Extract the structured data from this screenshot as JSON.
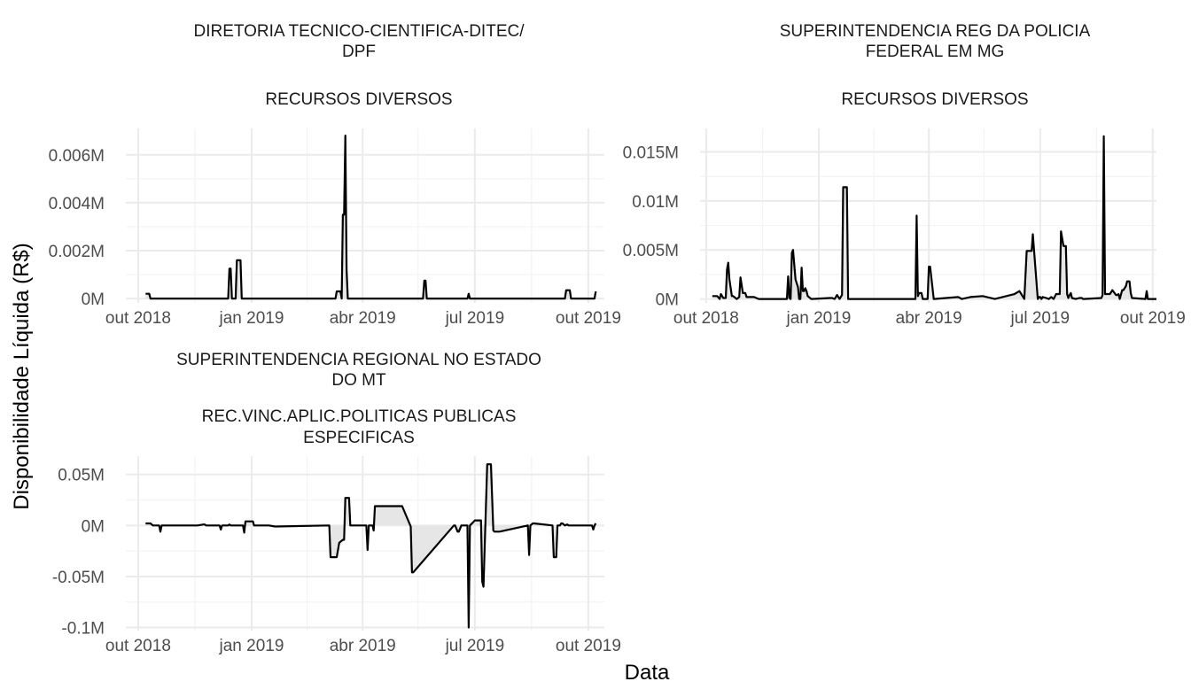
{
  "figure": {
    "xlabel": "Data",
    "ylabel": "Disponibilidade Líquida (R$)"
  },
  "chart_data": [
    {
      "type": "area",
      "title_lines": [
        "DIRETORIA TECNICO-CIENTIFICA-DITEC/",
        "DPF",
        "",
        "RECURSOS DIVERSOS"
      ],
      "xlabel": "Data",
      "ylabel": "Disponibilidade Líquida (R$)",
      "x_ticks": [
        {
          "date": "2018-10-01",
          "label": "out 2018"
        },
        {
          "date": "2019-01-01",
          "label": "jan 2019"
        },
        {
          "date": "2019-04-01",
          "label": "abr 2019"
        },
        {
          "date": "2019-07-01",
          "label": "jul 2019"
        },
        {
          "date": "2019-10-01",
          "label": "out 2019"
        }
      ],
      "y_ticks": [
        {
          "value": 0,
          "label": "0M"
        },
        {
          "value": 0.002,
          "label": "0.002M"
        },
        {
          "value": 0.004,
          "label": "0.004M"
        },
        {
          "value": 0.006,
          "label": "0.006M"
        }
      ],
      "xlim": [
        "2018-09-21",
        "2019-10-14"
      ],
      "ylim": [
        -0.00018,
        0.0071
      ],
      "unit": "M",
      "grid": true,
      "series": [
        {
          "color": "#000000",
          "fill": "#e6e6e6",
          "x": [
            "2018-10-07",
            "2018-10-10",
            "2018-10-11",
            "2018-12-13",
            "2018-12-14",
            "2018-12-15",
            "2018-12-16",
            "2018-12-19",
            "2018-12-20",
            "2018-12-23",
            "2018-12-24",
            "2019-03-10",
            "2019-03-11",
            "2019-03-14",
            "2019-03-15",
            "2019-03-16",
            "2019-03-17",
            "2019-03-18",
            "2019-03-19",
            "2019-03-20",
            "2019-05-20",
            "2019-05-21",
            "2019-05-22",
            "2019-05-23",
            "2019-06-25",
            "2019-06-26",
            "2019-06-27",
            "2019-09-12",
            "2019-09-13",
            "2019-09-16",
            "2019-09-17",
            "2019-10-06",
            "2019-10-07"
          ],
          "y": [
            0.0002,
            0.0002,
            0,
            0,
            0.00125,
            0.00125,
            0,
            0,
            0.0016,
            0.0016,
            0,
            0,
            0.0003,
            0.0003,
            0,
            0.0035,
            0.0035,
            0.0068,
            0.0012,
            0,
            0,
            0.00075,
            0.00075,
            0,
            0,
            0.0002,
            0,
            0,
            0.00035,
            0.00035,
            0,
            0,
            0.0003
          ]
        }
      ]
    },
    {
      "type": "area",
      "title_lines": [
        "SUPERINTENDENCIA REG DA POLICIA",
        "FEDERAL EM MG",
        "",
        "RECURSOS DIVERSOS"
      ],
      "xlabel": "Data",
      "ylabel": "Disponibilidade Líquida (R$)",
      "x_ticks": [
        {
          "date": "2018-10-01",
          "label": "out 2018"
        },
        {
          "date": "2019-01-01",
          "label": "jan 2019"
        },
        {
          "date": "2019-04-01",
          "label": "abr 2019"
        },
        {
          "date": "2019-07-01",
          "label": "jul 2019"
        },
        {
          "date": "2019-10-01",
          "label": "out 2019"
        }
      ],
      "y_ticks": [
        {
          "value": 0,
          "label": "0M"
        },
        {
          "value": 0.005,
          "label": "0.005M"
        },
        {
          "value": 0.01,
          "label": "0.01M"
        },
        {
          "value": 0.015,
          "label": "0.015M"
        }
      ],
      "xlim": [
        "2018-09-26",
        "2019-10-04"
      ],
      "ylim": [
        -0.0004,
        0.0174
      ],
      "unit": "M",
      "grid": true,
      "series": [
        {
          "color": "#000000",
          "fill": "#e6e6e6",
          "x": [
            "2018-10-06",
            "2018-10-10",
            "2018-10-12",
            "2018-10-13",
            "2018-10-15",
            "2018-10-17",
            "2018-10-18",
            "2018-10-19",
            "2018-10-20",
            "2018-10-22",
            "2018-10-23",
            "2018-10-26",
            "2018-10-28",
            "2018-10-29",
            "2018-10-31",
            "2018-11-02",
            "2018-11-03",
            "2018-11-09",
            "2018-11-13",
            "2018-12-05",
            "2018-12-06",
            "2018-12-07",
            "2018-12-08",
            "2018-12-09",
            "2018-12-10",
            "2018-12-11",
            "2018-12-13",
            "2018-12-15",
            "2018-12-16",
            "2018-12-17",
            "2018-12-18",
            "2018-12-19",
            "2018-12-20",
            "2018-12-21",
            "2018-12-22",
            "2018-12-23",
            "2018-12-26",
            "2019-01-10",
            "2019-01-12",
            "2019-01-14",
            "2019-01-16",
            "2019-01-18",
            "2019-01-20",
            "2019-01-21",
            "2019-01-22",
            "2019-01-24",
            "2019-01-25",
            "2019-01-27",
            "2019-03-21",
            "2019-03-22",
            "2019-03-23",
            "2019-03-24",
            "2019-03-26",
            "2019-03-27",
            "2019-03-30",
            "2019-03-31",
            "2019-04-01",
            "2019-04-02",
            "2019-04-05",
            "2019-04-25",
            "2019-04-28",
            "2019-05-05",
            "2019-05-15",
            "2019-05-25",
            "2019-06-10",
            "2019-06-14",
            "2019-06-18",
            "2019-06-20",
            "2019-06-22",
            "2019-06-24",
            "2019-06-25",
            "2019-06-29",
            "2019-06-30",
            "2019-07-01",
            "2019-07-02",
            "2019-07-03",
            "2019-07-06",
            "2019-07-08",
            "2019-07-10",
            "2019-07-12",
            "2019-07-14",
            "2019-07-16",
            "2019-07-17",
            "2019-07-18",
            "2019-07-20",
            "2019-07-22",
            "2019-07-23",
            "2019-07-24",
            "2019-07-25",
            "2019-07-26",
            "2019-07-27",
            "2019-07-30",
            "2019-08-02",
            "2019-08-04",
            "2019-08-05",
            "2019-08-20",
            "2019-08-21",
            "2019-08-22",
            "2019-08-23",
            "2019-08-24",
            "2019-08-26",
            "2019-08-27",
            "2019-08-29",
            "2019-09-01",
            "2019-09-02",
            "2019-09-03",
            "2019-09-04",
            "2019-09-06",
            "2019-09-07",
            "2019-09-09",
            "2019-09-10",
            "2019-09-12",
            "2019-09-13",
            "2019-09-14",
            "2019-09-25",
            "2019-09-26",
            "2019-09-27",
            "2019-10-04"
          ],
          "y": [
            0.0003,
            0.0003,
            0,
            0.0005,
            0.0001,
            0.0001,
            0.003,
            0.0037,
            0.002,
            0.0003,
            0.0003,
            0,
            0.0002,
            0.0022,
            0.0006,
            0.0006,
            0.0002,
            0.0002,
            0,
            0,
            0,
            0.0023,
            0.0001,
            0,
            0.0047,
            0.005,
            0.002,
            0.0012,
            0,
            0,
            0.0032,
            0.0008,
            0.0008,
            0.0011,
            0.0008,
            0.0003,
            0,
            0.0001,
            0.0001,
            0,
            0.0004,
            0,
            0.0004,
            0.0114,
            0.0114,
            0.0114,
            0,
            0,
            0,
            0.0085,
            0.0003,
            0.0006,
            0.0006,
            0,
            0,
            0,
            0.0033,
            0.0033,
            0,
            0.0002,
            0,
            0.0002,
            0.0003,
            0,
            0.0005,
            0.0008,
            0,
            0.0049,
            0.0049,
            0.0049,
            0.0066,
            0,
            0.0002,
            0.0002,
            0,
            0.0002,
            0.0001,
            0,
            0.0002,
            0,
            0.0005,
            0.0005,
            0.0005,
            0.0069,
            0.0054,
            0.0054,
            0.0005,
            0.0001,
            0.0004,
            0.0006,
            0.0001,
            0,
            0.0001,
            0.0001,
            0,
            0.0001,
            0.0004,
            0.0166,
            0.0005,
            0.0005,
            0.0005,
            0.0005,
            0.0009,
            0.0004,
            0.0004,
            0.0005,
            0,
            0.0009,
            0.0009,
            0.0013,
            0.0018,
            0.0018,
            0.0006,
            0.0001,
            0,
            0.0008,
            0,
            0
          ]
        }
      ]
    },
    {
      "type": "area",
      "title_lines": [
        "SUPERINTENDENCIA REGIONAL NO ESTADO",
        "DO MT",
        "",
        "REC.VINC.APLIC.POLITICAS PUBLICAS",
        "ESPECIFICAS"
      ],
      "xlabel": "Data",
      "ylabel": "Disponibilidade Líquida (R$)",
      "x_ticks": [
        {
          "date": "2018-10-01",
          "label": "out 2018"
        },
        {
          "date": "2019-01-01",
          "label": "jan 2019"
        },
        {
          "date": "2019-04-01",
          "label": "abr 2019"
        },
        {
          "date": "2019-07-01",
          "label": "jul 2019"
        },
        {
          "date": "2019-10-01",
          "label": "out 2019"
        }
      ],
      "y_ticks": [
        {
          "value": -0.1,
          "label": "-0.1M"
        },
        {
          "value": -0.05,
          "label": "-0.05M"
        },
        {
          "value": 0,
          "label": "0M"
        },
        {
          "value": 0.05,
          "label": "0.05M"
        }
      ],
      "xlim": [
        "2018-09-21",
        "2019-10-14"
      ],
      "ylim": [
        -0.103,
        0.068
      ],
      "unit": "M",
      "grid": true,
      "series": [
        {
          "color": "#000000",
          "fill": "#e6e6e6",
          "x": [
            "2018-10-07",
            "2018-10-11",
            "2018-10-13",
            "2018-10-15",
            "2018-10-18",
            "2018-10-19",
            "2018-10-20",
            "2018-11-18",
            "2018-11-23",
            "2018-11-24",
            "2018-11-25",
            "2018-12-06",
            "2018-12-07",
            "2018-12-08",
            "2018-12-13",
            "2018-12-14",
            "2018-12-15",
            "2018-12-25",
            "2018-12-26",
            "2018-12-27",
            "2019-01-01",
            "2019-01-02",
            "2019-01-03",
            "2019-01-15",
            "2019-01-20",
            "2019-03-05",
            "2019-03-06",
            "2019-03-10",
            "2019-03-11",
            "2019-03-13",
            "2019-03-16",
            "2019-03-17",
            "2019-03-18",
            "2019-03-21",
            "2019-03-22",
            "2019-04-04",
            "2019-04-05",
            "2019-04-06",
            "2019-04-09",
            "2019-04-10",
            "2019-04-11",
            "2019-04-12",
            "2019-05-02",
            "2019-05-03",
            "2019-05-10",
            "2019-05-11",
            "2019-05-12",
            "2019-06-14",
            "2019-06-15",
            "2019-06-17",
            "2019-06-18",
            "2019-06-20",
            "2019-06-25",
            "2019-06-26",
            "2019-06-27",
            "2019-07-01",
            "2019-07-05",
            "2019-07-06",
            "2019-07-07",
            "2019-07-08",
            "2019-07-11",
            "2019-07-12",
            "2019-07-14",
            "2019-07-16",
            "2019-07-17",
            "2019-07-21",
            "2019-08-13",
            "2019-08-14",
            "2019-08-15",
            "2019-08-17",
            "2019-08-18",
            "2019-09-02",
            "2019-09-03",
            "2019-09-05",
            "2019-09-06",
            "2019-09-07",
            "2019-09-08",
            "2019-09-09",
            "2019-09-10",
            "2019-09-12",
            "2019-09-14",
            "2019-09-15",
            "2019-10-03",
            "2019-10-04",
            "2019-10-05",
            "2019-10-06",
            "2019-10-07"
          ],
          "y": [
            0.002,
            0.002,
            0,
            0,
            0,
            -0.006,
            0,
            0,
            0.001,
            0.001,
            0,
            0,
            -0.004,
            0,
            0,
            0.001,
            0,
            0,
            -0.007,
            0.004,
            0.004,
            0.004,
            0,
            0,
            -0.001,
            0,
            -0.031,
            -0.031,
            -0.031,
            -0.017,
            -0.014,
            -0.014,
            0.027,
            0.027,
            0,
            0,
            -0.024,
            0,
            0,
            -0.005,
            0.019,
            0.019,
            0.019,
            0.019,
            -0.001,
            -0.046,
            -0.046,
            0,
            0,
            -0.006,
            -0.006,
            0,
            0,
            -0.1,
            0,
            0.005,
            0.005,
            0.005,
            -0.055,
            -0.06,
            0.06,
            0.06,
            0.06,
            -0.005,
            -0.006,
            -0.006,
            0,
            -0.029,
            0,
            0.002,
            0.002,
            0,
            -0.031,
            -0.031,
            0,
            0,
            0,
            0.002,
            0.002,
            0,
            0.001,
            0,
            0,
            0,
            -0.004,
            0,
            0.002
          ]
        }
      ]
    }
  ]
}
